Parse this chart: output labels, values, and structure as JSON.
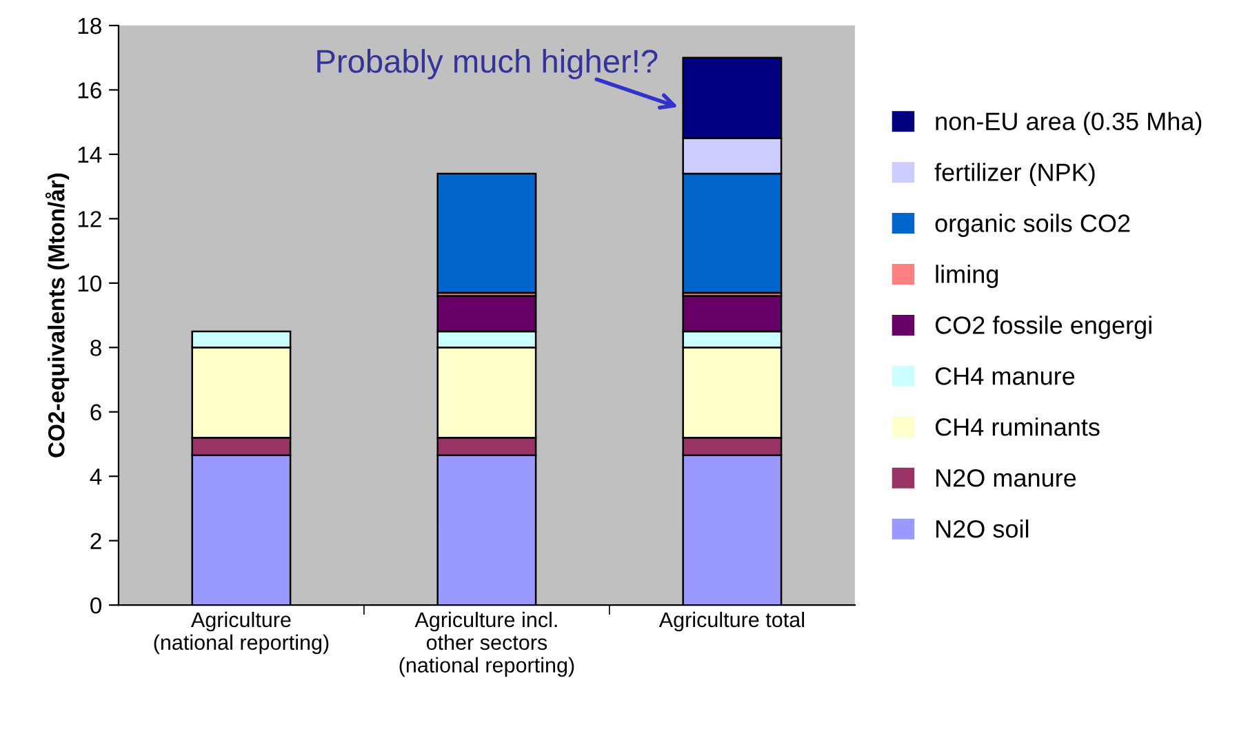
{
  "chart_data": {
    "type": "bar",
    "stacked": true,
    "ylabel": "CO2-equivalents (Mton/år)",
    "categories": [
      "Agriculture\n(national reporting)",
      "Agriculture incl.\nother sectors\n(national reporting)",
      "Agriculture total"
    ],
    "series": [
      {
        "name": "N2O soil",
        "color": "#9999ff",
        "values": [
          4.65,
          4.65,
          4.65
        ]
      },
      {
        "name": "N2O manure",
        "color": "#993366",
        "values": [
          0.55,
          0.55,
          0.55
        ]
      },
      {
        "name": "CH4 ruminants",
        "color": "#ffffcc",
        "values": [
          2.8,
          2.8,
          2.8
        ]
      },
      {
        "name": "CH4 manure",
        "color": "#ccffff",
        "values": [
          0.5,
          0.5,
          0.5
        ]
      },
      {
        "name": "CO2 fossile engergi",
        "color": "#660066",
        "values": [
          null,
          1.1,
          1.1
        ]
      },
      {
        "name": "liming",
        "color": "#ff8080",
        "values": [
          null,
          0.1,
          0.1
        ]
      },
      {
        "name": "organic soils CO2",
        "color": "#0066cc",
        "values": [
          null,
          3.7,
          3.7
        ]
      },
      {
        "name": "fertilizer (NPK)",
        "color": "#ccccff",
        "values": [
          null,
          null,
          1.1
        ]
      },
      {
        "name": "non-EU area (0.35 Mha)",
        "color": "#000080",
        "values": [
          null,
          null,
          2.5
        ]
      }
    ],
    "ylim": [
      0,
      18
    ],
    "yticks": [
      0,
      2,
      4,
      6,
      8,
      10,
      12,
      14,
      16,
      18
    ],
    "annotations": [
      "Probably much higher!?"
    ],
    "legend": "right",
    "grid": false
  }
}
